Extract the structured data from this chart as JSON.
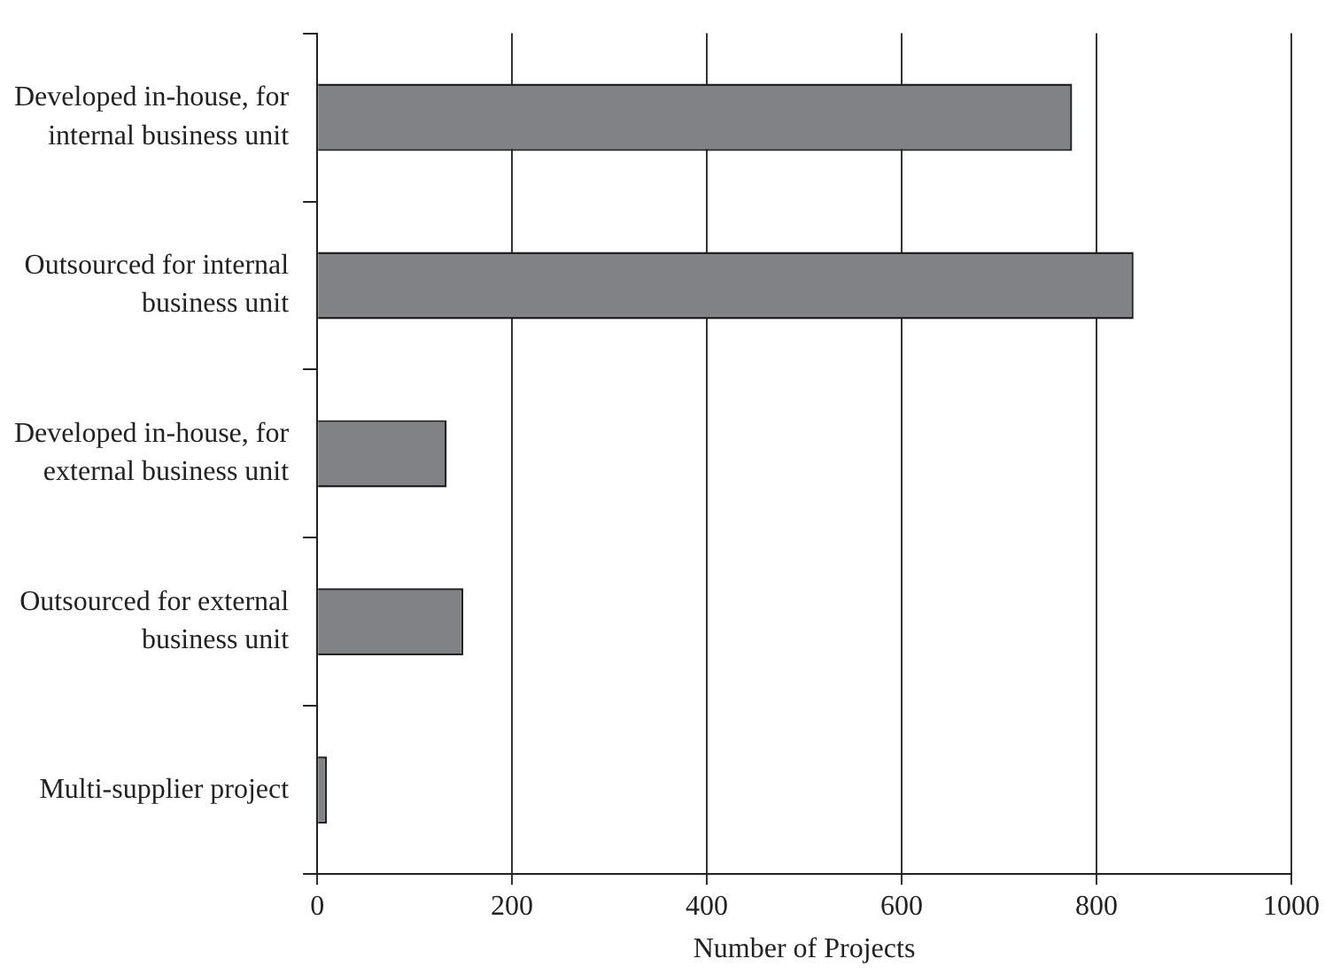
{
  "chart_data": {
    "type": "bar",
    "orientation": "horizontal",
    "xlabel": "Number of Projects",
    "categories": [
      "Developed in-house, for internal business unit",
      "Outsourced for internal business unit",
      "Developed in-house, for external business unit",
      "Outsourced for external business unit",
      "Multi-supplier project"
    ],
    "values": [
      775,
      838,
      133,
      150,
      10
    ],
    "color": "#808285",
    "xlim": [
      0,
      1000
    ],
    "xticks": [
      0,
      200,
      400,
      600,
      800,
      1000
    ],
    "grid": "x",
    "legend": false
  }
}
